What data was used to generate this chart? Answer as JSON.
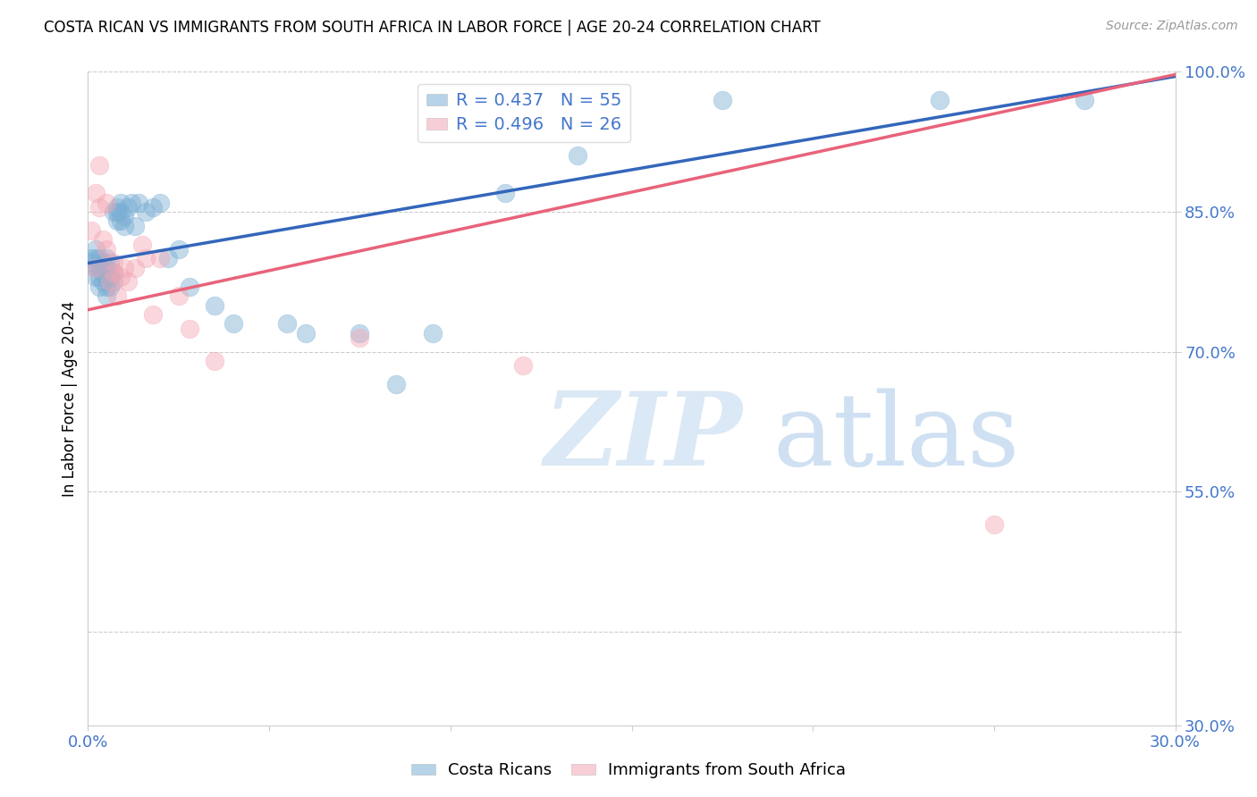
{
  "title": "COSTA RICAN VS IMMIGRANTS FROM SOUTH AFRICA IN LABOR FORCE | AGE 20-24 CORRELATION CHART",
  "source": "Source: ZipAtlas.com",
  "ylabel": "In Labor Force | Age 20-24",
  "xlim": [
    0.0,
    0.3
  ],
  "ylim": [
    0.3,
    1.0
  ],
  "xtick_vals": [
    0.0,
    0.05,
    0.1,
    0.15,
    0.2,
    0.25,
    0.3
  ],
  "xtick_labels": [
    "0.0%",
    "",
    "",
    "",
    "",
    "",
    "30.0%"
  ],
  "ytick_vals": [
    0.3,
    0.4,
    0.55,
    0.7,
    0.85,
    1.0
  ],
  "ytick_labels": [
    "30.0%",
    "",
    "55.0%",
    "70.0%",
    "85.0%",
    "100.0%"
  ],
  "legend_r1": "R = 0.437",
  "legend_n1": "N = 55",
  "legend_r2": "R = 0.496",
  "legend_n2": "N = 26",
  "blue_color": "#7BAFD4",
  "pink_color": "#F4A7B5",
  "line_blue": "#3366BB",
  "line_pink": "#E8637A",
  "tick_color": "#4477CC",
  "watermark_color": "#D8E8F5",
  "grid_color": "#CCCCCC",
  "cr_line_x0": 0.0,
  "cr_line_y0": 0.795,
  "cr_line_x1": 0.3,
  "cr_line_y1": 0.995,
  "sa_line_x0": 0.0,
  "sa_line_y0": 0.745,
  "sa_line_x1": 0.3,
  "sa_line_y1": 0.997,
  "cr_x": [
    0.001,
    0.001,
    0.002,
    0.002,
    0.002,
    0.002,
    0.003,
    0.003,
    0.003,
    0.003,
    0.004,
    0.004,
    0.004,
    0.005,
    0.005,
    0.005,
    0.005,
    0.005,
    0.006,
    0.006,
    0.006,
    0.006,
    0.007,
    0.007,
    0.007,
    0.008,
    0.008,
    0.008,
    0.009,
    0.009,
    0.009,
    0.01,
    0.01,
    0.011,
    0.012,
    0.013,
    0.014,
    0.016,
    0.018,
    0.02,
    0.022,
    0.025,
    0.028,
    0.035,
    0.04,
    0.055,
    0.06,
    0.075,
    0.085,
    0.095,
    0.115,
    0.135,
    0.175,
    0.235,
    0.275
  ],
  "cr_y": [
    0.795,
    0.8,
    0.78,
    0.79,
    0.8,
    0.81,
    0.77,
    0.78,
    0.79,
    0.8,
    0.775,
    0.785,
    0.795,
    0.76,
    0.77,
    0.78,
    0.79,
    0.8,
    0.77,
    0.78,
    0.785,
    0.795,
    0.775,
    0.785,
    0.85,
    0.84,
    0.85,
    0.855,
    0.84,
    0.85,
    0.86,
    0.835,
    0.845,
    0.855,
    0.86,
    0.835,
    0.86,
    0.85,
    0.855,
    0.86,
    0.8,
    0.81,
    0.77,
    0.75,
    0.73,
    0.73,
    0.72,
    0.72,
    0.665,
    0.72,
    0.87,
    0.91,
    0.97,
    0.97,
    0.97
  ],
  "sa_x": [
    0.001,
    0.002,
    0.002,
    0.003,
    0.003,
    0.004,
    0.005,
    0.005,
    0.006,
    0.007,
    0.007,
    0.008,
    0.009,
    0.01,
    0.011,
    0.013,
    0.015,
    0.016,
    0.018,
    0.02,
    0.025,
    0.028,
    0.035,
    0.075,
    0.12,
    0.25
  ],
  "sa_y": [
    0.83,
    0.79,
    0.87,
    0.855,
    0.9,
    0.82,
    0.86,
    0.81,
    0.775,
    0.785,
    0.795,
    0.76,
    0.78,
    0.79,
    0.775,
    0.79,
    0.815,
    0.8,
    0.74,
    0.8,
    0.76,
    0.725,
    0.69,
    0.715,
    0.685,
    0.515
  ]
}
